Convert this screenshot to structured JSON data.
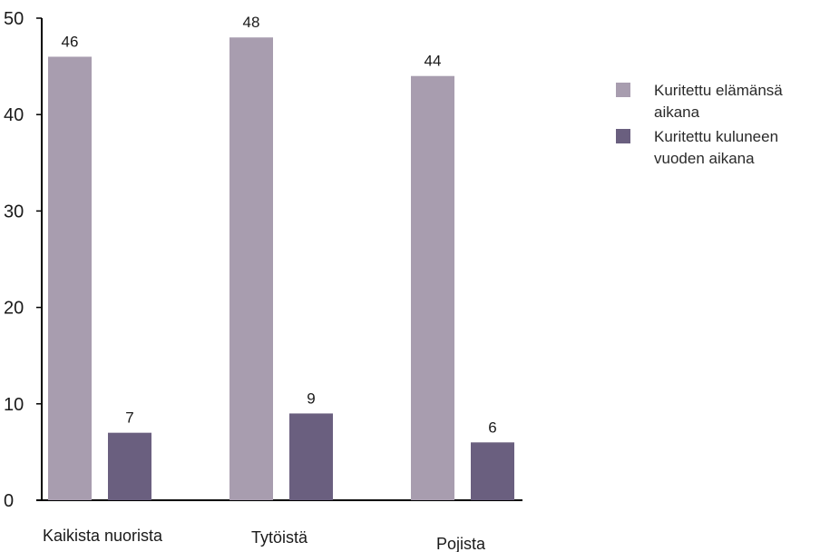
{
  "chart_data": {
    "type": "bar",
    "categories": [
      "Kaikista nuorista",
      "Tytöistä",
      "Pojista"
    ],
    "series": [
      {
        "name": "Kuritettu elämänsä aikana",
        "values": [
          46,
          48,
          44
        ],
        "color": "#a89daf"
      },
      {
        "name": "Kuritettu kuluneen vuoden aikana",
        "values": [
          7,
          9,
          6
        ],
        "color": "#6a5f7f"
      }
    ],
    "ylim": [
      0,
      50
    ],
    "yticks": [
      0,
      10,
      20,
      30,
      40,
      50
    ],
    "grid": false,
    "legend_position": "top-right",
    "title": "",
    "xlabel": "",
    "ylabel": ""
  }
}
